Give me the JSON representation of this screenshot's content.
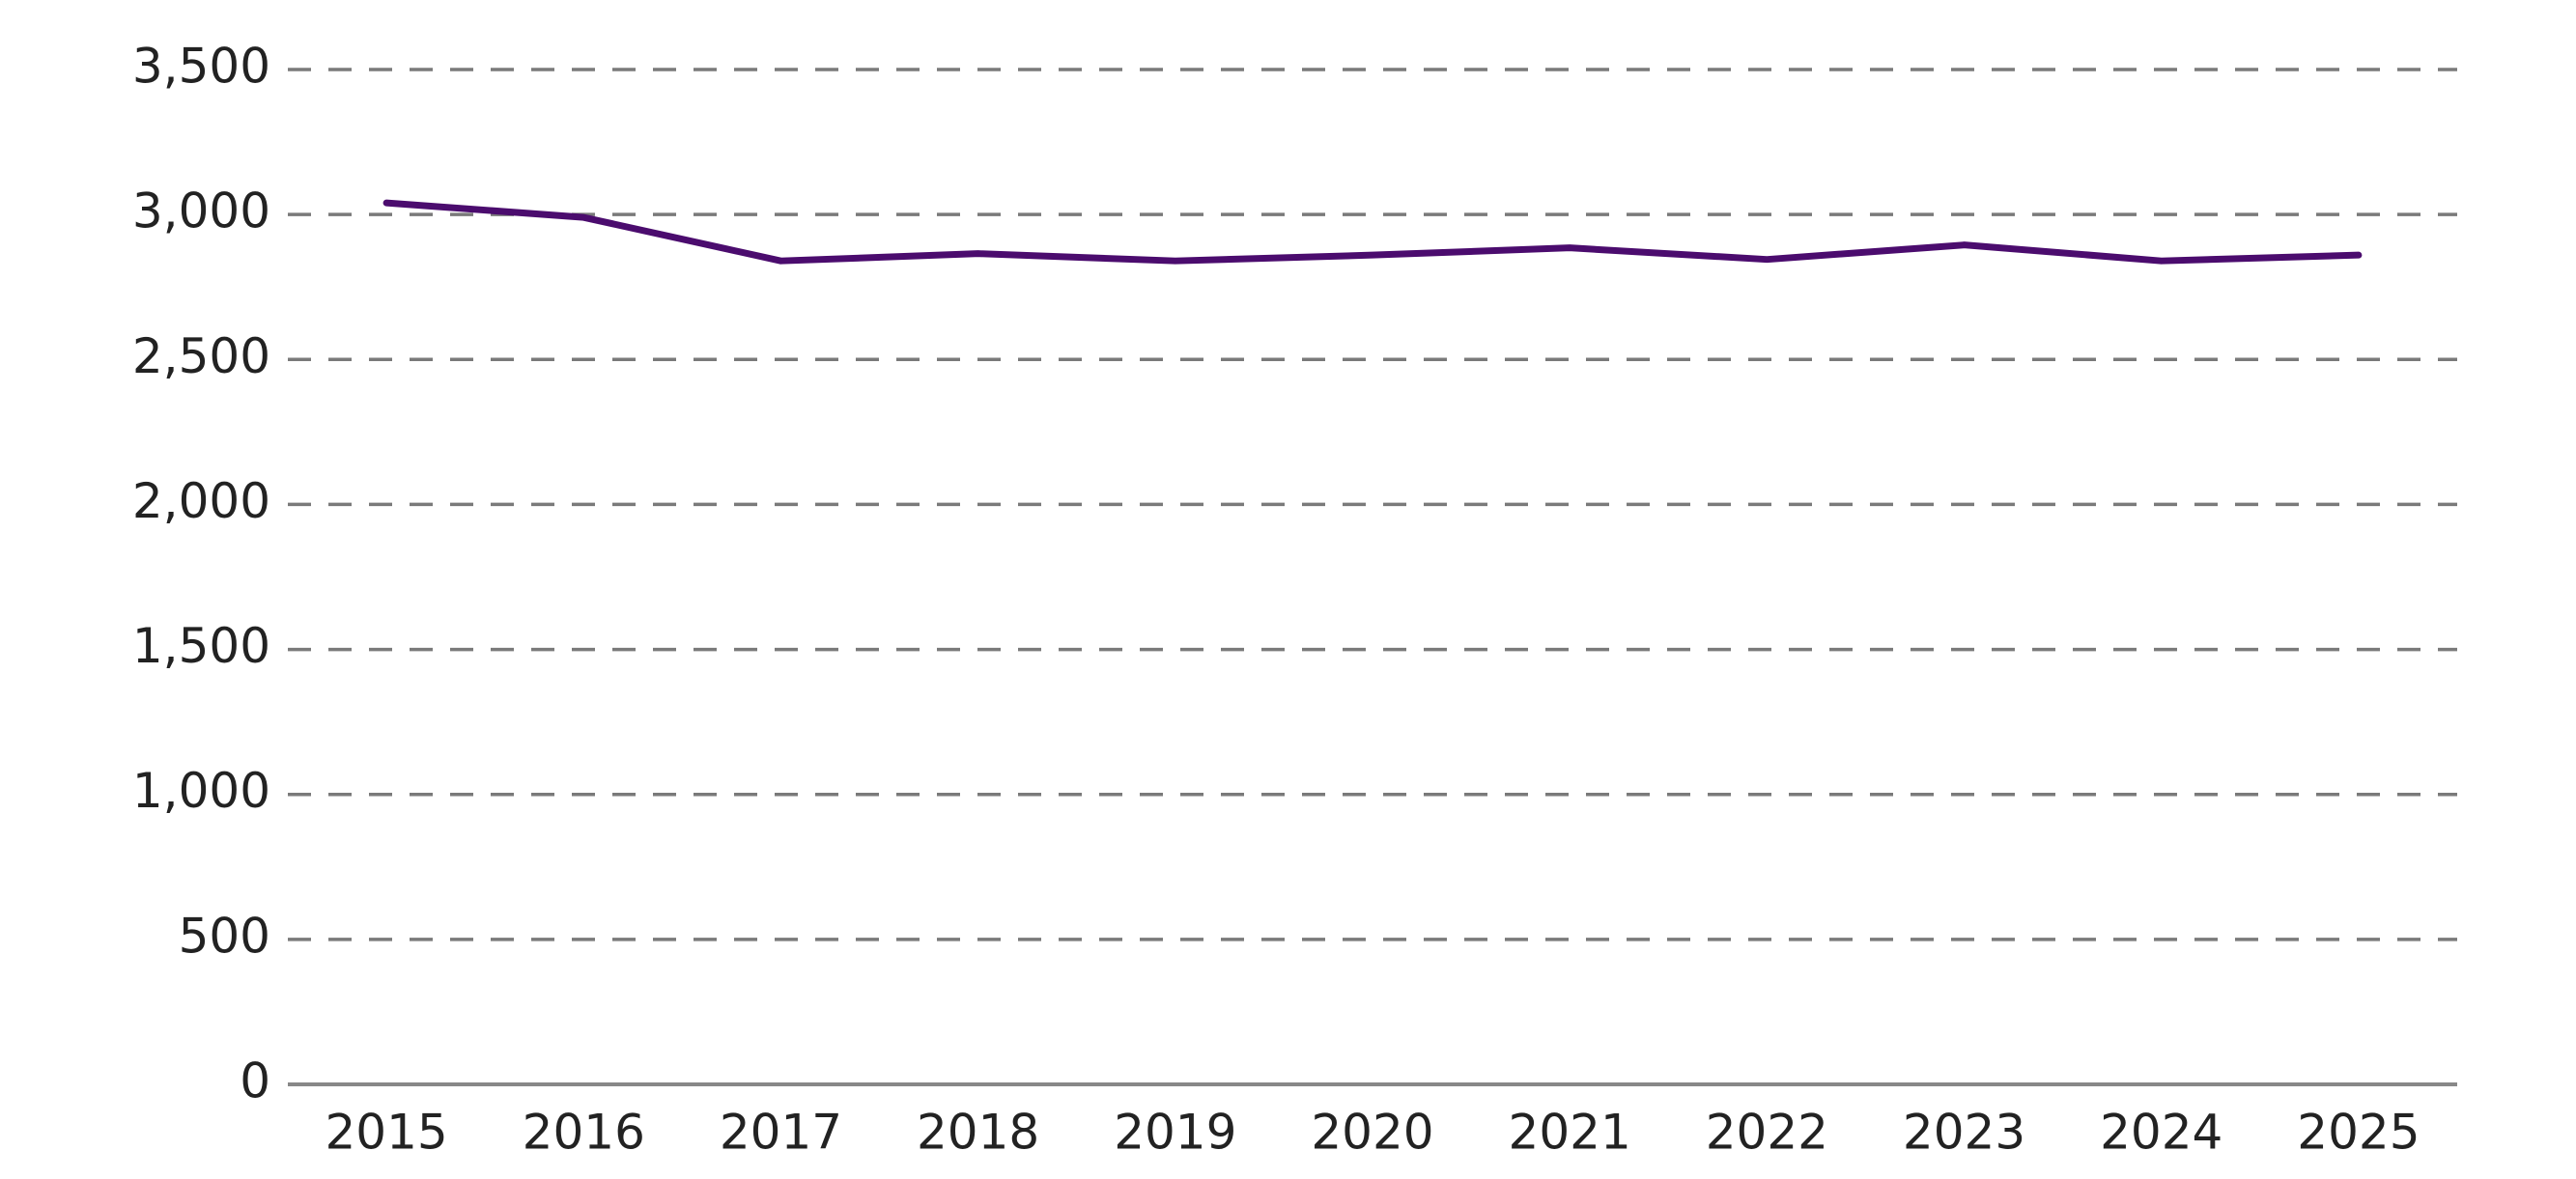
{
  "chart_data": {
    "type": "line",
    "categories": [
      "2015",
      "2016",
      "2017",
      "2018",
      "2019",
      "2020",
      "2021",
      "2022",
      "2023",
      "2024",
      "2025"
    ],
    "series": [
      {
        "color": "#4b0c6e",
        "values": [
          3040,
          2990,
          2840,
          2865,
          2840,
          2860,
          2885,
          2845,
          2895,
          2840,
          2860
        ]
      }
    ],
    "ylim": [
      0,
      3500
    ],
    "yticks": [
      0,
      500,
      {
        "value": 1000,
        "label": "1,000"
      },
      {
        "value": 1500,
        "label": "1,500"
      },
      {
        "value": 2000,
        "label": "2,000"
      },
      {
        "value": 2500,
        "label": "2,500"
      },
      {
        "value": 3000,
        "label": "3,000"
      },
      {
        "value": 3500,
        "label": "3,500"
      }
    ],
    "grid": true
  }
}
